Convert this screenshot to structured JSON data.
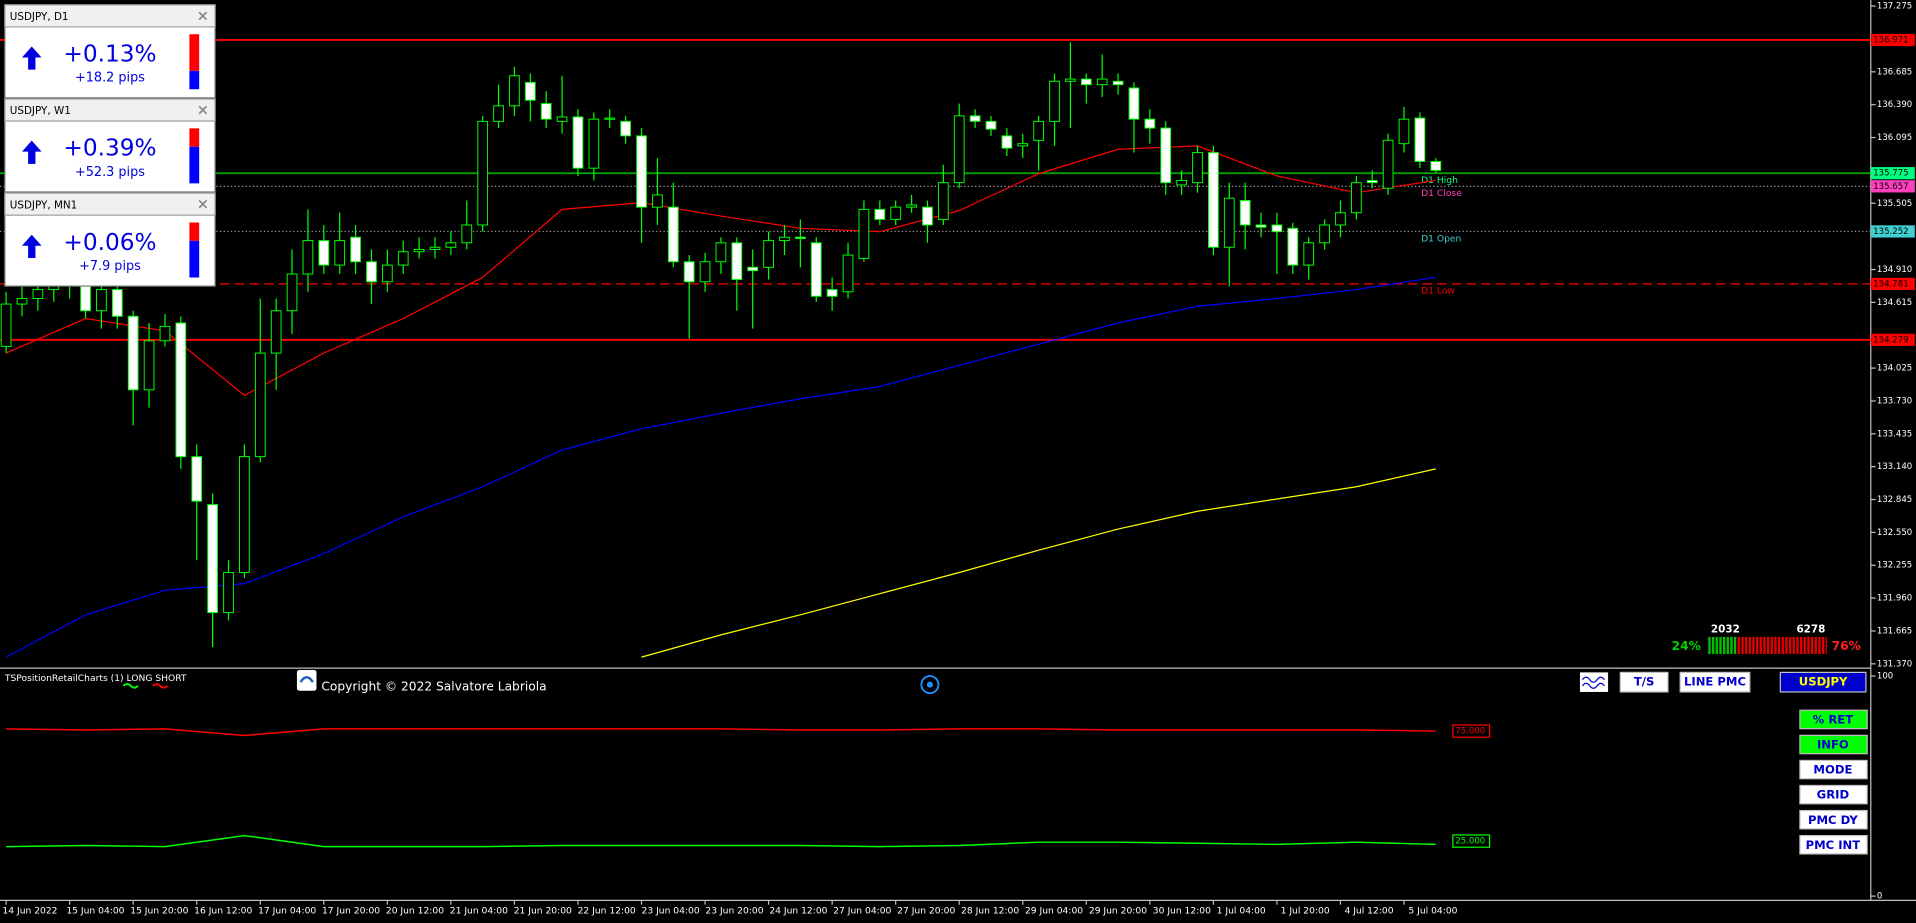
{
  "chart_data": [
    {
      "type": "candlestick",
      "x_labels": [
        "14 Jun 2022",
        "15 Jun 04:00",
        "15 Jun 20:00",
        "16 Jun 12:00",
        "17 Jun 04:00",
        "17 Jun 20:00",
        "20 Jun 12:00",
        "21 Jun 04:00",
        "21 Jun 20:00",
        "22 Jun 12:00",
        "23 Jun 04:00",
        "23 Jun 20:00",
        "24 Jun 12:00",
        "27 Jun 04:00",
        "27 Jun 20:00",
        "28 Jun 12:00",
        "29 Jun 04:00",
        "29 Jun 20:00",
        "30 Jun 12:00",
        "1 Jul 04:00",
        "1 Jul 20:00",
        "4 Jul 12:00",
        "5 Jul 04:00"
      ],
      "open": [
        134.22,
        134.6,
        134.65,
        134.73,
        134.8,
        134.84,
        134.54,
        134.73,
        134.49,
        133.83,
        134.27,
        134.43,
        133.23,
        132.8,
        131.83,
        132.19,
        133.23,
        134.16,
        134.54,
        134.87,
        135.17,
        134.95,
        135.2,
        134.98,
        134.8,
        134.95,
        135.07,
        135.09,
        135.11,
        135.15,
        135.31,
        136.24,
        136.38,
        136.59,
        136.4,
        136.24,
        136.28,
        135.82,
        136.26,
        136.24,
        136.11,
        135.47,
        135.47,
        134.98,
        134.8,
        134.98,
        135.15,
        134.93,
        134.93,
        135.17,
        135.2,
        135.15,
        134.73,
        134.71,
        135.01,
        135.45,
        135.36,
        135.47,
        135.47,
        135.36,
        135.69,
        136.29,
        136.24,
        136.11,
        136.02,
        136.07,
        136.24,
        136.6,
        136.62,
        136.57,
        136.6,
        136.54,
        136.26,
        136.18,
        135.67,
        135.69,
        135.96,
        135.11,
        135.53,
        135.31,
        135.31,
        135.28,
        134.95,
        135.15,
        135.31,
        135.42,
        135.71,
        135.64,
        136.04,
        136.27,
        135.88
      ],
      "high": [
        134.71,
        134.76,
        134.84,
        134.9,
        135.04,
        134.98,
        134.87,
        134.87,
        134.54,
        134.43,
        134.51,
        134.49,
        133.34,
        132.9,
        132.3,
        133.34,
        134.65,
        134.65,
        135.09,
        135.45,
        135.31,
        135.42,
        135.31,
        135.09,
        135.09,
        135.17,
        135.2,
        135.2,
        135.25,
        135.53,
        136.29,
        136.57,
        136.73,
        136.67,
        136.51,
        136.65,
        136.35,
        136.32,
        136.35,
        136.29,
        136.18,
        135.91,
        135.69,
        135.04,
        135.06,
        135.2,
        135.2,
        135.09,
        135.25,
        135.31,
        135.36,
        135.2,
        134.84,
        135.15,
        135.53,
        135.53,
        135.53,
        135.58,
        135.53,
        135.85,
        136.4,
        136.35,
        136.29,
        136.18,
        136.13,
        136.29,
        136.67,
        136.95,
        136.67,
        136.84,
        136.67,
        136.59,
        136.35,
        136.24,
        135.8,
        136.02,
        136.02,
        135.69,
        135.69,
        135.42,
        135.42,
        135.33,
        135.2,
        135.36,
        135.53,
        135.75,
        135.8,
        136.13,
        136.37,
        136.32,
        135.91
      ],
      "low": [
        134.16,
        134.49,
        134.54,
        134.62,
        134.65,
        134.47,
        134.38,
        134.38,
        133.51,
        133.67,
        134.22,
        133.12,
        132.3,
        131.52,
        131.76,
        132.14,
        133.18,
        133.83,
        134.33,
        134.71,
        134.87,
        134.87,
        134.87,
        134.6,
        134.71,
        134.87,
        135.01,
        135.01,
        135.04,
        135.09,
        135.25,
        136.18,
        136.29,
        136.24,
        136.18,
        136.13,
        135.75,
        135.71,
        136.18,
        136.04,
        135.15,
        135.31,
        134.93,
        134.29,
        134.71,
        134.87,
        134.54,
        134.38,
        134.82,
        135.04,
        134.93,
        134.62,
        134.54,
        134.65,
        134.98,
        135.31,
        135.31,
        135.42,
        135.15,
        135.31,
        135.64,
        136.18,
        136.11,
        135.93,
        135.91,
        135.8,
        136.02,
        136.18,
        136.4,
        136.46,
        136.48,
        135.96,
        136.04,
        135.58,
        135.58,
        135.6,
        135.04,
        134.76,
        135.09,
        135.2,
        134.87,
        134.87,
        134.82,
        135.09,
        135.2,
        135.36,
        135.64,
        135.58,
        135.96,
        135.82,
        135.78
      ],
      "close": [
        134.6,
        134.65,
        134.73,
        134.8,
        134.84,
        134.54,
        134.73,
        134.49,
        133.83,
        134.27,
        134.4,
        133.23,
        132.83,
        131.83,
        132.19,
        133.23,
        134.16,
        134.54,
        134.87,
        135.17,
        134.95,
        135.17,
        134.98,
        134.8,
        134.95,
        135.07,
        135.09,
        135.11,
        135.15,
        135.31,
        136.24,
        136.38,
        136.65,
        136.43,
        136.26,
        136.28,
        135.82,
        136.26,
        136.27,
        136.11,
        135.47,
        135.58,
        134.98,
        134.8,
        134.98,
        135.15,
        134.82,
        134.9,
        135.17,
        135.2,
        135.19,
        134.67,
        134.67,
        135.04,
        135.45,
        135.36,
        135.47,
        135.49,
        135.31,
        135.69,
        136.29,
        136.24,
        136.17,
        136.0,
        136.04,
        136.24,
        136.6,
        136.62,
        136.57,
        136.62,
        136.57,
        136.26,
        136.18,
        135.69,
        135.71,
        135.96,
        135.11,
        135.55,
        135.31,
        135.29,
        135.25,
        134.95,
        135.15,
        135.31,
        135.42,
        135.69,
        135.69,
        136.07,
        136.26,
        135.88,
        135.8
      ],
      "colors": {
        "bull": "#000000",
        "bear": "#ffffff",
        "outline": "#00ff00"
      },
      "ylim": [
        131.37,
        137.275
      ],
      "yticks": [
        137.275,
        136.685,
        {
          "value": 136.39,
          "label": "136.390"
        },
        136.095,
        135.505,
        {
          "value": 134.91,
          "label": "134.910"
        },
        134.615,
        134.025,
        {
          "value": 133.73,
          "label": "133.730"
        },
        133.435,
        {
          "value": 133.14,
          "label": "133.140"
        },
        132.845,
        {
          "value": 132.55,
          "label": "132.550"
        },
        132.255,
        {
          "value": 131.96,
          "label": "131.960"
        },
        131.665,
        {
          "value": 131.37,
          "label": "131.370"
        }
      ],
      "grid": false,
      "moving_averages": {
        "x": [
          0,
          5,
          10,
          15,
          20,
          25,
          30,
          35,
          40,
          45,
          50,
          55,
          60,
          65,
          70,
          75,
          80,
          85,
          90
        ],
        "series": [
          {
            "color": "#ff0000",
            "values": [
              134.16,
              134.47,
              134.36,
              133.78,
              134.16,
              134.47,
              134.84,
              135.45,
              135.51,
              135.39,
              135.28,
              135.25,
              135.44,
              135.77,
              135.99,
              136.02,
              135.75,
              135.6,
              135.71
            ]
          },
          {
            "color": "#0000ff",
            "values": [
              131.43,
              131.81,
              132.03,
              132.09,
              132.36,
              132.69,
              132.96,
              133.29,
              133.48,
              133.62,
              133.75,
              133.86,
              134.05,
              134.24,
              134.43,
              134.58,
              134.65,
              134.73,
              134.84
            ]
          },
          {
            "color": "#ffff00",
            "values": [
              null,
              null,
              null,
              null,
              null,
              null,
              null,
              null,
              131.43,
              131.63,
              131.81,
              132.0,
              132.19,
              132.39,
              132.58,
              132.74,
              132.85,
              132.96,
              133.12
            ]
          }
        ]
      },
      "levels": [
        {
          "value": 136.971,
          "color": "#ff0000",
          "style": "solid"
        },
        {
          "value": 135.775,
          "color": "#00ff80",
          "line_color": "#00a000",
          "style": "solid",
          "label": "D1 High"
        },
        {
          "value": 135.657,
          "color": "#ff40c0",
          "line_color": "#a0a0a0",
          "style": "dotted",
          "label": "D1 Close"
        },
        {
          "value": 135.252,
          "color": "#40d0d0",
          "line_color": "#a0a0a0",
          "style": "dotted",
          "label": "D1 Open"
        },
        {
          "value": 134.781,
          "color": "#ff0000",
          "style": "dashed",
          "label": "D1 Low"
        },
        {
          "value": 134.279,
          "color": "#ff0000",
          "style": "solid"
        }
      ]
    },
    {
      "type": "line",
      "title": "TSPositionRetailCharts (1) LONG SHORT",
      "x": [
        0,
        5,
        10,
        15,
        20,
        25,
        30,
        35,
        40,
        45,
        50,
        55,
        60,
        65,
        70,
        75,
        80,
        85,
        90
      ],
      "ylim": [
        0,
        100
      ],
      "yticks": [
        100,
        0
      ],
      "series": [
        {
          "color": "#ff0000",
          "values": [
            76,
            75.5,
            76,
            73,
            76,
            76,
            76,
            76,
            76,
            76,
            75.5,
            75.5,
            76,
            76,
            75.5,
            75.5,
            75.5,
            75.5,
            75
          ]
        },
        {
          "color": "#00ff00",
          "values": [
            22.5,
            23,
            22.5,
            27.5,
            22.5,
            22.5,
            22.5,
            23,
            23,
            23,
            23,
            22.5,
            23,
            24.5,
            24.5,
            24,
            23.5,
            24.5,
            23.5
          ]
        }
      ],
      "levels": [
        {
          "value": 75,
          "label": "75.000",
          "color": "#ff0000"
        },
        {
          "value": 25,
          "label": "25.000",
          "color": "#00ff00"
        }
      ]
    }
  ],
  "widgets": [
    {
      "title": "USDJPY, D1",
      "change": "+0.13%",
      "pips": "+18.2 pips"
    },
    {
      "title": "USDJPY, W1",
      "change": "+0.39%",
      "pips": "+52.3 pips"
    },
    {
      "title": "USDJPY, MN1",
      "change": "+0.06%",
      "pips": "+7.9 pips"
    }
  ],
  "copyright": "Copyright © 2022 Salvatore Labriola",
  "top_buttons": [
    "T/S",
    "LINE PMC",
    "USDJPY"
  ],
  "side_buttons": [
    "% RET",
    "INFO",
    "MODE",
    "GRID",
    "PMC DY",
    "PMC INT"
  ],
  "sentiment": {
    "long_count": 2032,
    "short_count": 6278,
    "long_pct": "24%",
    "short_pct": "76%"
  }
}
